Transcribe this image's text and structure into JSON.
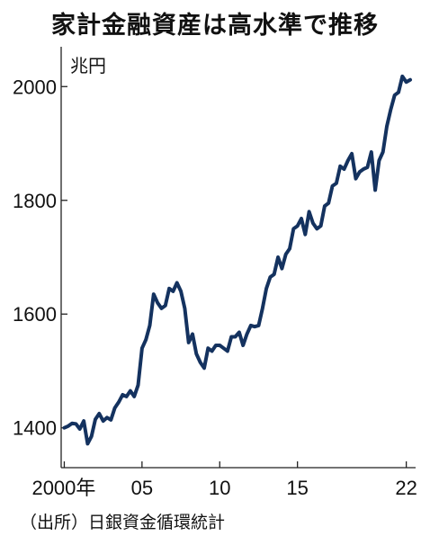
{
  "title": "家計金融資産は高水準で推移",
  "source": "（出所）日銀資金循環統計",
  "chart_data": {
    "type": "line",
    "title": "家計金融資産は高水準で推移",
    "ylabel": "兆円",
    "xlabel": "",
    "ylim": [
      1330,
      2070
    ],
    "xlim": [
      1999.8,
      2022.6
    ],
    "y_ticks": [
      1400,
      1600,
      1800,
      2000
    ],
    "x_ticks": [
      {
        "value": 2000,
        "label": "2000年"
      },
      {
        "value": 2005,
        "label": "05"
      },
      {
        "value": 2010,
        "label": "10"
      },
      {
        "value": 2015,
        "label": "15"
      },
      {
        "value": 2022,
        "label": "22"
      }
    ],
    "grid": false,
    "line_color": "#14325f",
    "series": [
      {
        "x": [
          2000.0,
          2000.25,
          2000.5,
          2000.75,
          2001.0,
          2001.25,
          2001.5,
          2001.75,
          2002.0,
          2002.25,
          2002.5,
          2002.75,
          2003.0,
          2003.25,
          2003.5,
          2003.75,
          2004.0,
          2004.25,
          2004.5,
          2004.75,
          2005.0,
          2005.25,
          2005.5,
          2005.75,
          2006.0,
          2006.25,
          2006.5,
          2006.75,
          2007.0,
          2007.25,
          2007.5,
          2007.75,
          2008.0,
          2008.25,
          2008.5,
          2008.75,
          2009.0,
          2009.25,
          2009.5,
          2009.75,
          2010.0,
          2010.25,
          2010.5,
          2010.75,
          2011.0,
          2011.25,
          2011.5,
          2011.75,
          2012.0,
          2012.25,
          2012.5,
          2012.75,
          2013.0,
          2013.25,
          2013.5,
          2013.75,
          2014.0,
          2014.25,
          2014.5,
          2014.75,
          2015.0,
          2015.25,
          2015.5,
          2015.75,
          2016.0,
          2016.25,
          2016.5,
          2016.75,
          2017.0,
          2017.25,
          2017.5,
          2017.75,
          2018.0,
          2018.25,
          2018.5,
          2018.75,
          2019.0,
          2019.25,
          2019.5,
          2019.75,
          2020.0,
          2020.25,
          2020.5,
          2020.75,
          2021.0,
          2021.25,
          2021.5,
          2021.75,
          2022.0,
          2022.25
        ],
        "values": [
          1400,
          1403,
          1408,
          1407,
          1398,
          1412,
          1372,
          1385,
          1415,
          1425,
          1412,
          1418,
          1414,
          1435,
          1445,
          1458,
          1455,
          1465,
          1455,
          1475,
          1540,
          1555,
          1580,
          1635,
          1620,
          1610,
          1615,
          1645,
          1640,
          1655,
          1640,
          1610,
          1550,
          1565,
          1530,
          1515,
          1505,
          1540,
          1535,
          1545,
          1545,
          1540,
          1535,
          1560,
          1560,
          1568,
          1545,
          1565,
          1580,
          1578,
          1580,
          1610,
          1645,
          1665,
          1670,
          1700,
          1680,
          1705,
          1715,
          1750,
          1755,
          1768,
          1740,
          1780,
          1760,
          1750,
          1755,
          1790,
          1795,
          1825,
          1830,
          1860,
          1855,
          1870,
          1882,
          1838,
          1850,
          1855,
          1858,
          1885,
          1818,
          1870,
          1885,
          1930,
          1960,
          1985,
          1990,
          2018,
          2008,
          2012
        ]
      }
    ]
  }
}
